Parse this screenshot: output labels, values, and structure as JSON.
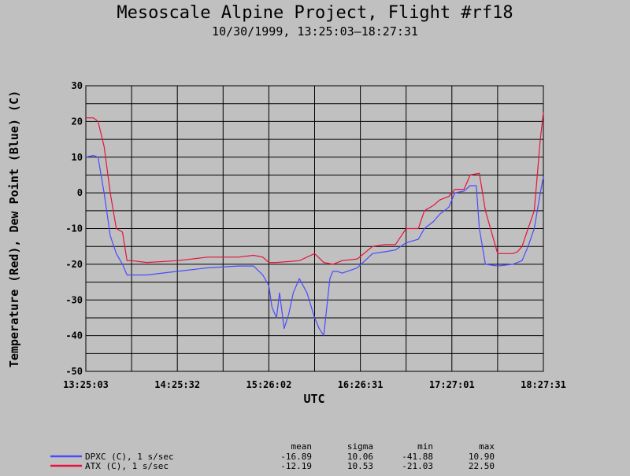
{
  "chart_data": {
    "type": "line",
    "title": "Mesoscale Alpine Project, Flight #rf18",
    "subtitle": "10/30/1999, 13:25:03–18:27:31",
    "xlabel": "UTC",
    "ylabel": "Temperature (Red), Dew Point (Blue) (C)",
    "ylim": [
      -50,
      30
    ],
    "xlim": [
      0,
      300
    ],
    "yticks": [
      30,
      20,
      10,
      0,
      -10,
      -20,
      -30,
      -40,
      -50
    ],
    "xtick_labels": [
      "13:25:03",
      "14:25:32",
      "15:26:02",
      "16:26:31",
      "17:27:01",
      "18:27:31"
    ],
    "grid": true,
    "series": [
      {
        "name": "ATX (C), 1 s/sec",
        "color": "#e8123c",
        "x": [
          0,
          5,
          8,
          12,
          16,
          20,
          24,
          27,
          30,
          40,
          60,
          80,
          100,
          110,
          116,
          120,
          125,
          140,
          150,
          156,
          162,
          168,
          178,
          188,
          196,
          203,
          210,
          218,
          222,
          228,
          232,
          238,
          242,
          248,
          252,
          258,
          262,
          270,
          280,
          283,
          286,
          290,
          294,
          296,
          298,
          300
        ],
        "y": [
          21,
          21,
          20,
          13,
          0,
          -10,
          -11,
          -19,
          -19,
          -19.5,
          -19,
          -18,
          -18,
          -17.5,
          -18,
          -19.5,
          -19.5,
          -19,
          -17,
          -19.5,
          -20,
          -19,
          -18.5,
          -15,
          -14.5,
          -14.5,
          -10,
          -10,
          -5,
          -3.5,
          -2,
          -1,
          1,
          1,
          5,
          5.5,
          -5,
          -17,
          -17,
          -16.5,
          -15,
          -10,
          -5,
          5,
          15,
          22.5
        ]
      },
      {
        "name": "DPXC (C), 1 s/sec",
        "color": "#4a4aff",
        "x": [
          0,
          5,
          8,
          12,
          16,
          20,
          24,
          27,
          30,
          40,
          60,
          80,
          100,
          110,
          116,
          120,
          122,
          125,
          127,
          130,
          133,
          136,
          140,
          145,
          150,
          153,
          156,
          160,
          162,
          165,
          168,
          178,
          188,
          196,
          203,
          210,
          218,
          222,
          228,
          232,
          238,
          242,
          248,
          252,
          256,
          258,
          262,
          270,
          280,
          283,
          286,
          290,
          294,
          296,
          298,
          300
        ],
        "y": [
          10,
          10.5,
          10,
          0,
          -12,
          -17,
          -20,
          -23,
          -23,
          -23,
          -22,
          -21,
          -20.5,
          -20.5,
          -23,
          -26,
          -32,
          -35,
          -28,
          -38,
          -34,
          -28,
          -24,
          -28,
          -35,
          -38,
          -40,
          -24,
          -22,
          -22,
          -22.5,
          -21,
          -17,
          -16.5,
          -16,
          -14,
          -13,
          -10,
          -8,
          -6,
          -4,
          0,
          0.5,
          2,
          2,
          -10,
          -20,
          -20.5,
          -20,
          -19.5,
          -19,
          -15,
          -10,
          -5,
          0,
          4.5
        ]
      }
    ],
    "stats": {
      "headers": [
        "mean",
        "sigma",
        "min",
        "max"
      ],
      "rows": [
        {
          "label": "DPXC (C), 1 s/sec",
          "color": "#4a4aff",
          "mean": "-16.89",
          "sigma": "10.06",
          "min": "-41.88",
          "max": "10.90"
        },
        {
          "label": "ATX (C), 1 s/sec",
          "color": "#e8123c",
          "mean": "-12.19",
          "sigma": "10.53",
          "min": "-21.03",
          "max": "22.50"
        }
      ]
    }
  }
}
